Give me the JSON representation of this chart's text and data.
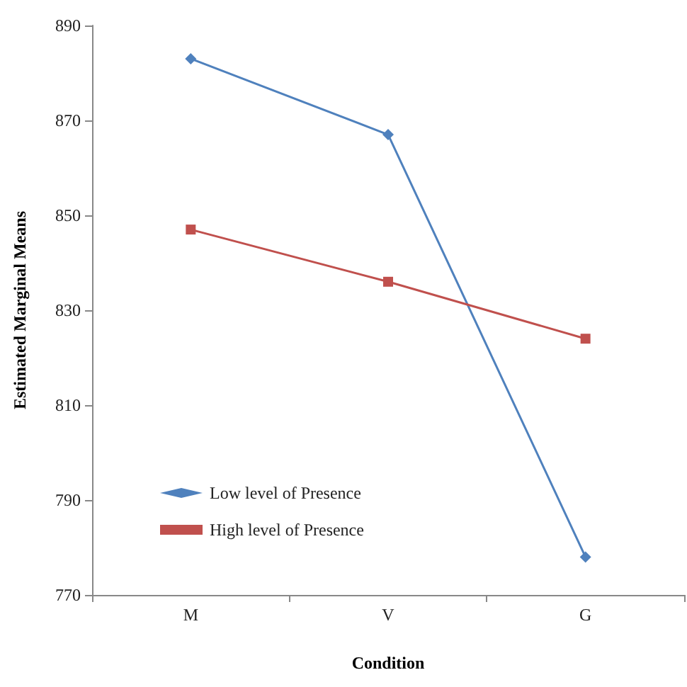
{
  "chart_data": {
    "type": "line",
    "xlabel": "Condition",
    "ylabel": "Estimated Marginal Means",
    "categories": [
      "M",
      "V",
      "G"
    ],
    "series": [
      {
        "name": "Low level of Presence",
        "color": "#4f81bd",
        "marker": "diamond",
        "values": [
          883,
          867,
          778
        ]
      },
      {
        "name": "High level of Presence",
        "color": "#c0504d",
        "marker": "square",
        "values": [
          847,
          836,
          824
        ]
      }
    ],
    "ylim": [
      770,
      890
    ],
    "yticks": [
      770,
      790,
      810,
      830,
      850,
      870,
      890
    ],
    "grid": false,
    "legend": "bottom left",
    "line_style": "solid"
  }
}
